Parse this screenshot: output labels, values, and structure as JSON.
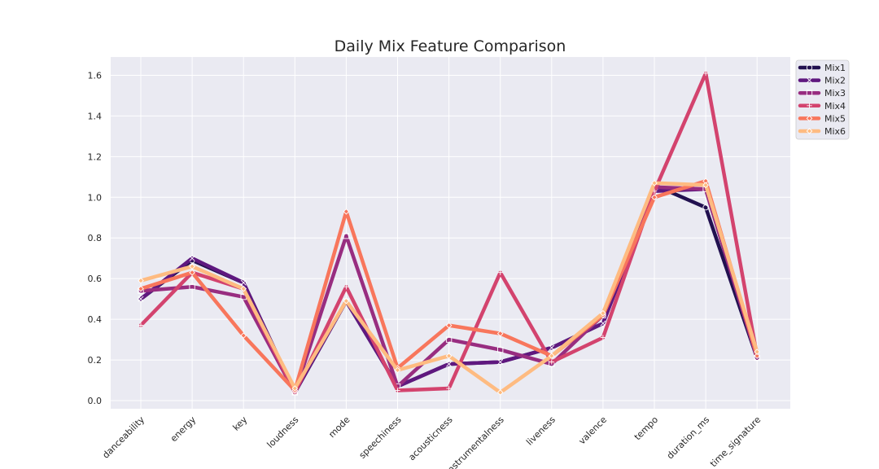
{
  "chart_data": {
    "type": "line",
    "title": "Daily Mix Feature Comparison",
    "xlabel": "",
    "ylabel": "",
    "ylim": [
      -0.04,
      1.69
    ],
    "yticks": [
      0.0,
      0.2,
      0.4,
      0.6,
      0.8,
      1.0,
      1.2,
      1.4,
      1.6
    ],
    "ytick_labels": [
      "0.0",
      "0.2",
      "0.4",
      "0.6",
      "0.8",
      "1.0",
      "1.2",
      "1.4",
      "1.6"
    ],
    "grid": true,
    "legend_position": "upper-right-outside",
    "categories": [
      "danceability",
      "energy",
      "key",
      "loudness",
      "mode",
      "speechiness",
      "acousticness",
      "instrumentalness",
      "liveness",
      "valence",
      "tempo",
      "duration_ms",
      "time_signature"
    ],
    "series": [
      {
        "name": "Mix1",
        "color": "#221150",
        "marker": "circle",
        "values": [
          0.5,
          0.69,
          0.58,
          0.04,
          0.49,
          0.07,
          0.18,
          0.19,
          0.26,
          0.38,
          1.06,
          0.95,
          0.21
        ]
      },
      {
        "name": "Mix2",
        "color": "#5f187f",
        "marker": "x",
        "values": [
          0.5,
          0.7,
          0.58,
          0.04,
          0.49,
          0.07,
          0.18,
          0.19,
          0.26,
          0.38,
          1.03,
          1.04,
          0.21
        ]
      },
      {
        "name": "Mix3",
        "color": "#982d80",
        "marker": "square",
        "values": [
          0.54,
          0.56,
          0.51,
          0.04,
          0.81,
          0.07,
          0.3,
          0.25,
          0.18,
          0.42,
          1.05,
          1.04,
          0.21
        ]
      },
      {
        "name": "Mix4",
        "color": "#d3436e",
        "marker": "plus",
        "values": [
          0.37,
          0.63,
          0.55,
          0.04,
          0.56,
          0.05,
          0.06,
          0.63,
          0.19,
          0.31,
          1.03,
          1.61,
          0.22
        ]
      },
      {
        "name": "Mix5",
        "color": "#f8765c",
        "marker": "diamond",
        "values": [
          0.55,
          0.63,
          0.32,
          0.05,
          0.93,
          0.16,
          0.37,
          0.33,
          0.22,
          0.42,
          1.0,
          1.08,
          0.22
        ]
      },
      {
        "name": "Mix6",
        "color": "#febb81",
        "marker": "diamond",
        "values": [
          0.59,
          0.66,
          0.55,
          0.06,
          0.49,
          0.15,
          0.22,
          0.04,
          0.22,
          0.43,
          1.07,
          1.06,
          0.24
        ]
      }
    ]
  }
}
